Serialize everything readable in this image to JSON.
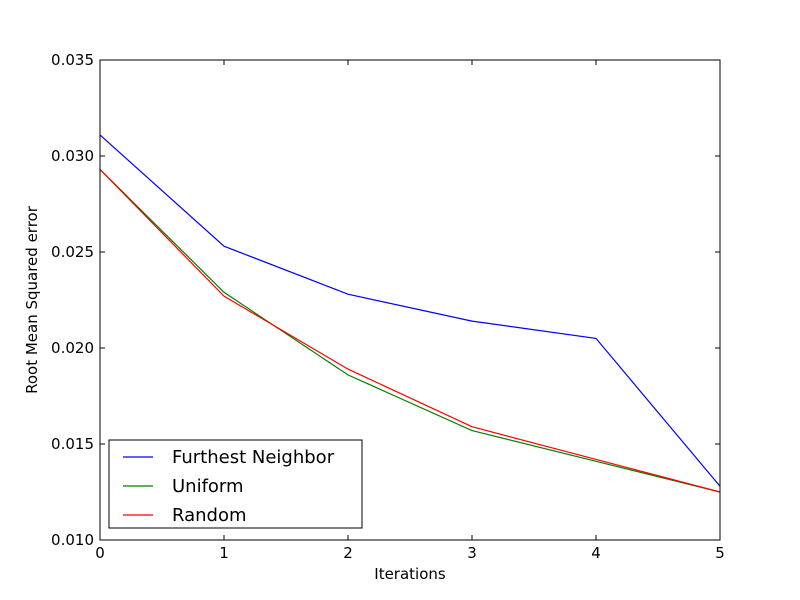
{
  "chart_data": {
    "type": "line",
    "title": "",
    "xlabel": "Iterations",
    "ylabel": "Root Mean Squared error",
    "x": [
      0,
      1,
      2,
      3,
      4,
      5
    ],
    "xlim": [
      0,
      5
    ],
    "ylim": [
      0.01,
      0.035
    ],
    "xticks": [
      "0",
      "1",
      "2",
      "3",
      "4",
      "5"
    ],
    "yticks": [
      "0.010",
      "0.015",
      "0.020",
      "0.025",
      "0.030",
      "0.035"
    ],
    "grid": false,
    "legend_position": "lower-left",
    "series": [
      {
        "name": "Furthest Neighbor",
        "color": "#0000ff",
        "values": [
          0.0311,
          0.0253,
          0.0228,
          0.0214,
          0.0205,
          0.0128
        ]
      },
      {
        "name": "Uniform",
        "color": "#008000",
        "values": [
          0.0293,
          0.0229,
          0.0186,
          0.0157,
          0.0141,
          0.0125
        ]
      },
      {
        "name": "Random",
        "color": "#ff0000",
        "values": [
          0.0293,
          0.0227,
          0.0189,
          0.0159,
          0.0142,
          0.0125
        ]
      }
    ]
  }
}
